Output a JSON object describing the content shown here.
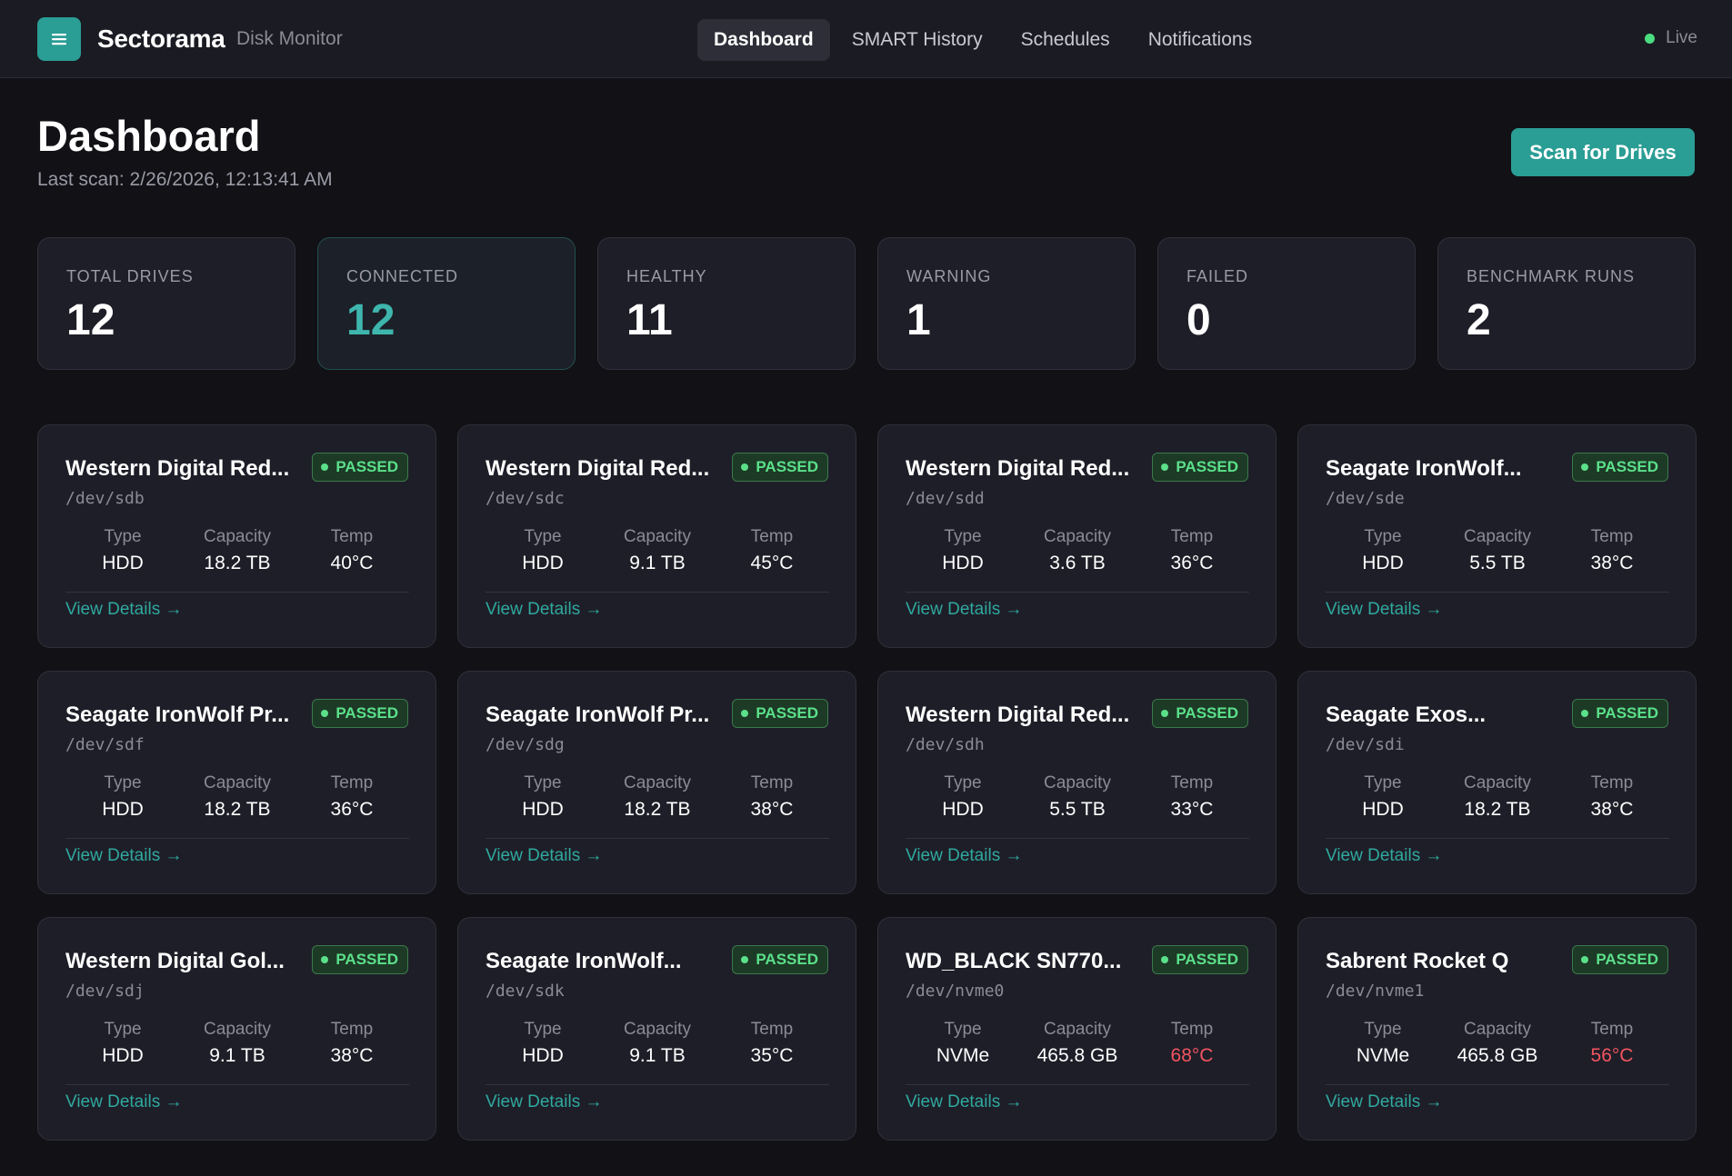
{
  "header": {
    "brand": "Sectorama",
    "subtitle": "Disk Monitor",
    "nav": [
      "Dashboard",
      "SMART History",
      "Schedules",
      "Notifications"
    ],
    "live_label": "Live"
  },
  "page": {
    "title": "Dashboard",
    "last_scan": "Last scan: 2/26/2026, 12:13:41 AM",
    "scan_button": "Scan for Drives"
  },
  "stats": [
    {
      "label": "TOTAL DRIVES",
      "value": "12"
    },
    {
      "label": "CONNECTED",
      "value": "12"
    },
    {
      "label": "HEALTHY",
      "value": "11"
    },
    {
      "label": "WARNING",
      "value": "1"
    },
    {
      "label": "FAILED",
      "value": "0"
    },
    {
      "label": "BENCHMARK RUNS",
      "value": "2"
    }
  ],
  "spec_labels": {
    "type": "Type",
    "capacity": "Capacity",
    "temp": "Temp"
  },
  "details_label": "View Details →",
  "drives": [
    {
      "name": "Western Digital Red...",
      "status": "PASSED",
      "dev": "/dev/sdb",
      "type": "HDD",
      "capacity": "18.2 TB",
      "temp": "40°C",
      "hot": false
    },
    {
      "name": "Western Digital Red...",
      "status": "PASSED",
      "dev": "/dev/sdc",
      "type": "HDD",
      "capacity": "9.1 TB",
      "temp": "45°C",
      "hot": false
    },
    {
      "name": "Western Digital Red...",
      "status": "PASSED",
      "dev": "/dev/sdd",
      "type": "HDD",
      "capacity": "3.6 TB",
      "temp": "36°C",
      "hot": false
    },
    {
      "name": "Seagate IronWolf...",
      "status": "PASSED",
      "dev": "/dev/sde",
      "type": "HDD",
      "capacity": "5.5 TB",
      "temp": "38°C",
      "hot": false
    },
    {
      "name": "Seagate IronWolf Pr...",
      "status": "PASSED",
      "dev": "/dev/sdf",
      "type": "HDD",
      "capacity": "18.2 TB",
      "temp": "36°C",
      "hot": false
    },
    {
      "name": "Seagate IronWolf Pr...",
      "status": "PASSED",
      "dev": "/dev/sdg",
      "type": "HDD",
      "capacity": "18.2 TB",
      "temp": "38°C",
      "hot": false
    },
    {
      "name": "Western Digital Red...",
      "status": "PASSED",
      "dev": "/dev/sdh",
      "type": "HDD",
      "capacity": "5.5 TB",
      "temp": "33°C",
      "hot": false
    },
    {
      "name": "Seagate Exos...",
      "status": "PASSED",
      "dev": "/dev/sdi",
      "type": "HDD",
      "capacity": "18.2 TB",
      "temp": "38°C",
      "hot": false
    },
    {
      "name": "Western Digital Gol...",
      "status": "PASSED",
      "dev": "/dev/sdj",
      "type": "HDD",
      "capacity": "9.1 TB",
      "temp": "38°C",
      "hot": false
    },
    {
      "name": "Seagate IronWolf...",
      "status": "PASSED",
      "dev": "/dev/sdk",
      "type": "HDD",
      "capacity": "9.1 TB",
      "temp": "35°C",
      "hot": false
    },
    {
      "name": "WD_BLACK SN770...",
      "status": "PASSED",
      "dev": "/dev/nvme0",
      "type": "NVMe",
      "capacity": "465.8 GB",
      "temp": "68°C",
      "hot": true
    },
    {
      "name": "Sabrent Rocket Q",
      "status": "PASSED",
      "dev": "/dev/nvme1",
      "type": "NVMe",
      "capacity": "465.8 GB",
      "temp": "56°C",
      "hot": true
    }
  ],
  "colors": {
    "accent": "#2a9d94",
    "passed": "#5be08a",
    "hot_temp": "#f0555f",
    "live": "#4ade80"
  },
  "icons": {
    "logo": "menu-lines-icon",
    "live": "status-dot-icon",
    "badge": "status-dot-icon"
  }
}
